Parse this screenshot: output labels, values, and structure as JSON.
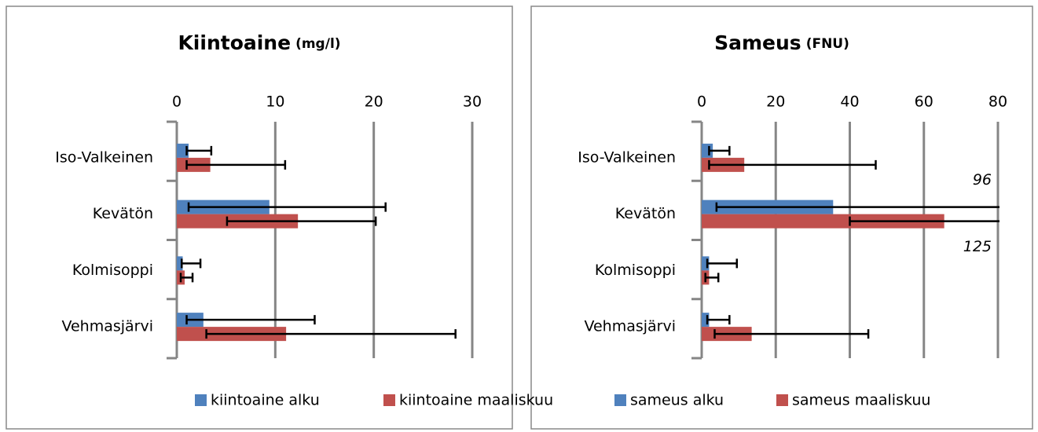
{
  "chart_data": [
    {
      "type": "bar",
      "orientation": "horizontal",
      "title": "Kiintoaine",
      "unit": "(mg/l)",
      "categories": [
        "Iso-Valkeinen",
        "Kevätön",
        "Kolmisoppi",
        "Vehmasjärvi"
      ],
      "series": [
        {
          "name": "kiintoaine alku",
          "color": "#4f81bd",
          "values": [
            1.2,
            9.4,
            0.6,
            2.7
          ],
          "low": [
            1.0,
            1.2,
            0.5,
            1.0
          ],
          "high": [
            3.5,
            21.2,
            2.4,
            14.0
          ]
        },
        {
          "name": "kiintoaine maaliskuu",
          "color": "#c0504d",
          "values": [
            3.4,
            12.3,
            0.8,
            11.1
          ],
          "low": [
            1.0,
            5.1,
            0.4,
            3.0
          ],
          "high": [
            11.0,
            20.2,
            1.6,
            28.3
          ]
        }
      ],
      "xlim": [
        0,
        30
      ],
      "xticks": [
        0,
        10,
        20,
        30
      ],
      "grid": true,
      "legend": "bottom"
    },
    {
      "type": "bar",
      "orientation": "horizontal",
      "title": "Sameus",
      "unit": "(FNU)",
      "categories": [
        "Iso-Valkeinen",
        "Kevätön",
        "Kolmisoppi",
        "Vehmasjärvi"
      ],
      "series": [
        {
          "name": "sameus alku",
          "color": "#4f81bd",
          "values": [
            3,
            35.5,
            2,
            2
          ],
          "low": [
            2,
            4,
            1.5,
            1.5
          ],
          "high": [
            7.5,
            96,
            9.5,
            7.5
          ]
        },
        {
          "name": "sameus maaliskuu",
          "color": "#c0504d",
          "values": [
            11.5,
            65.5,
            2,
            13.5
          ],
          "low": [
            2,
            40,
            1,
            3.5
          ],
          "high": [
            47,
            125,
            4.5,
            45
          ]
        }
      ],
      "xlim": [
        0,
        80
      ],
      "xticks": [
        0,
        20,
        40,
        60,
        80
      ],
      "grid": true,
      "legend": "bottom"
    }
  ]
}
